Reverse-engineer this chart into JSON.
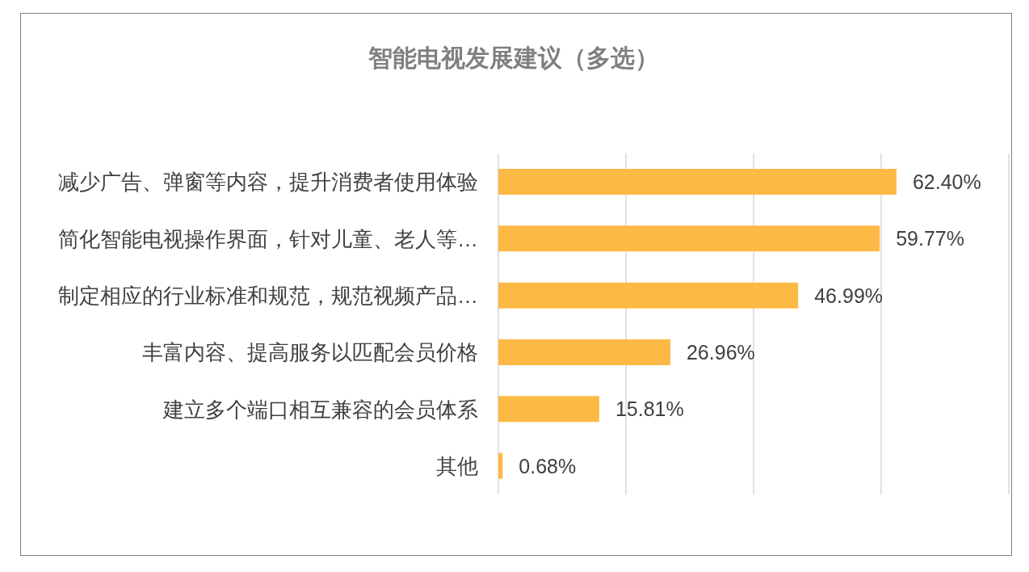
{
  "chart_data": {
    "type": "bar",
    "orientation": "horizontal",
    "title": "智能电视发展建议（多选）",
    "categories": [
      "减少广告、弹窗等内容，提升消费者使用体验",
      "简化智能电视操作界面，针对儿童、老人等…",
      "制定相应的行业标准和规范，规范视频产品…",
      "丰富内容、提高服务以匹配会员价格",
      "建立多个端口相互兼容的会员体系",
      "其他"
    ],
    "values": [
      62.4,
      59.77,
      46.99,
      26.96,
      15.81,
      0.68
    ],
    "value_labels": [
      "62.40%",
      "59.77%",
      "46.99%",
      "26.96%",
      "15.81%",
      "0.68%"
    ],
    "color": "#fdb945",
    "xlim": [
      0,
      80
    ],
    "xticks": [
      {
        "value": 0,
        "label": null
      },
      {
        "value": 20,
        "label": null
      },
      {
        "value": 40,
        "label": null
      },
      {
        "value": 60,
        "label": null
      },
      {
        "value": 80,
        "label": null
      }
    ],
    "grid": "x",
    "tick_labels": "y"
  }
}
